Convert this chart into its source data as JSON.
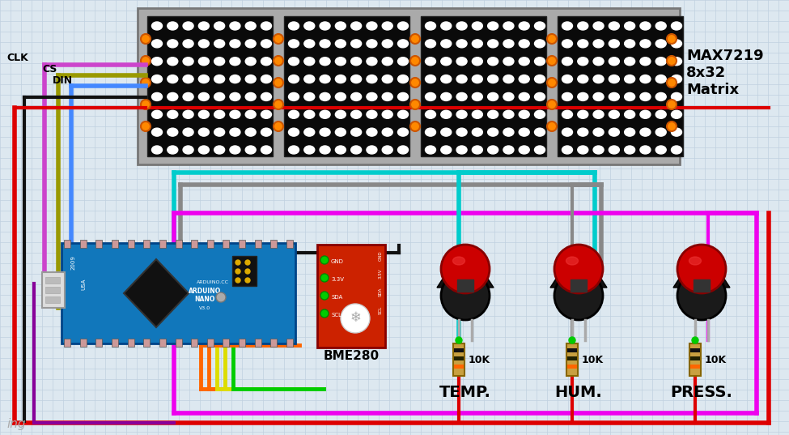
{
  "bg_color": "#dde8f0",
  "grid_color": "#c0d0df",
  "matrix_label": "MAX7219\n8x32\nMatrix",
  "bme_label": "BME280",
  "clk_label": "CLK",
  "cs_label": "CS",
  "din_label": "DIN",
  "temp_label": "TEMP.",
  "hum_label": "HUM.",
  "press_label": "PRESS.",
  "wire_clk": "#cc44cc",
  "wire_cs": "#999900",
  "wire_din": "#4488ff",
  "wire_red": "#dd0000",
  "wire_black": "#111111",
  "wire_cyan": "#00cccc",
  "wire_gray": "#888888",
  "wire_magenta": "#ee00ee",
  "wire_orange": "#ff6600",
  "wire_yellow": "#dddd00",
  "wire_green": "#00cc00",
  "wire_purple": "#880099",
  "wire_brown": "#884400",
  "led_pin_color": "#ff8800",
  "resistor_color": "#c8a040",
  "button_red": "#cc0000",
  "resistor_label": "10K",
  "watermark": "ing"
}
